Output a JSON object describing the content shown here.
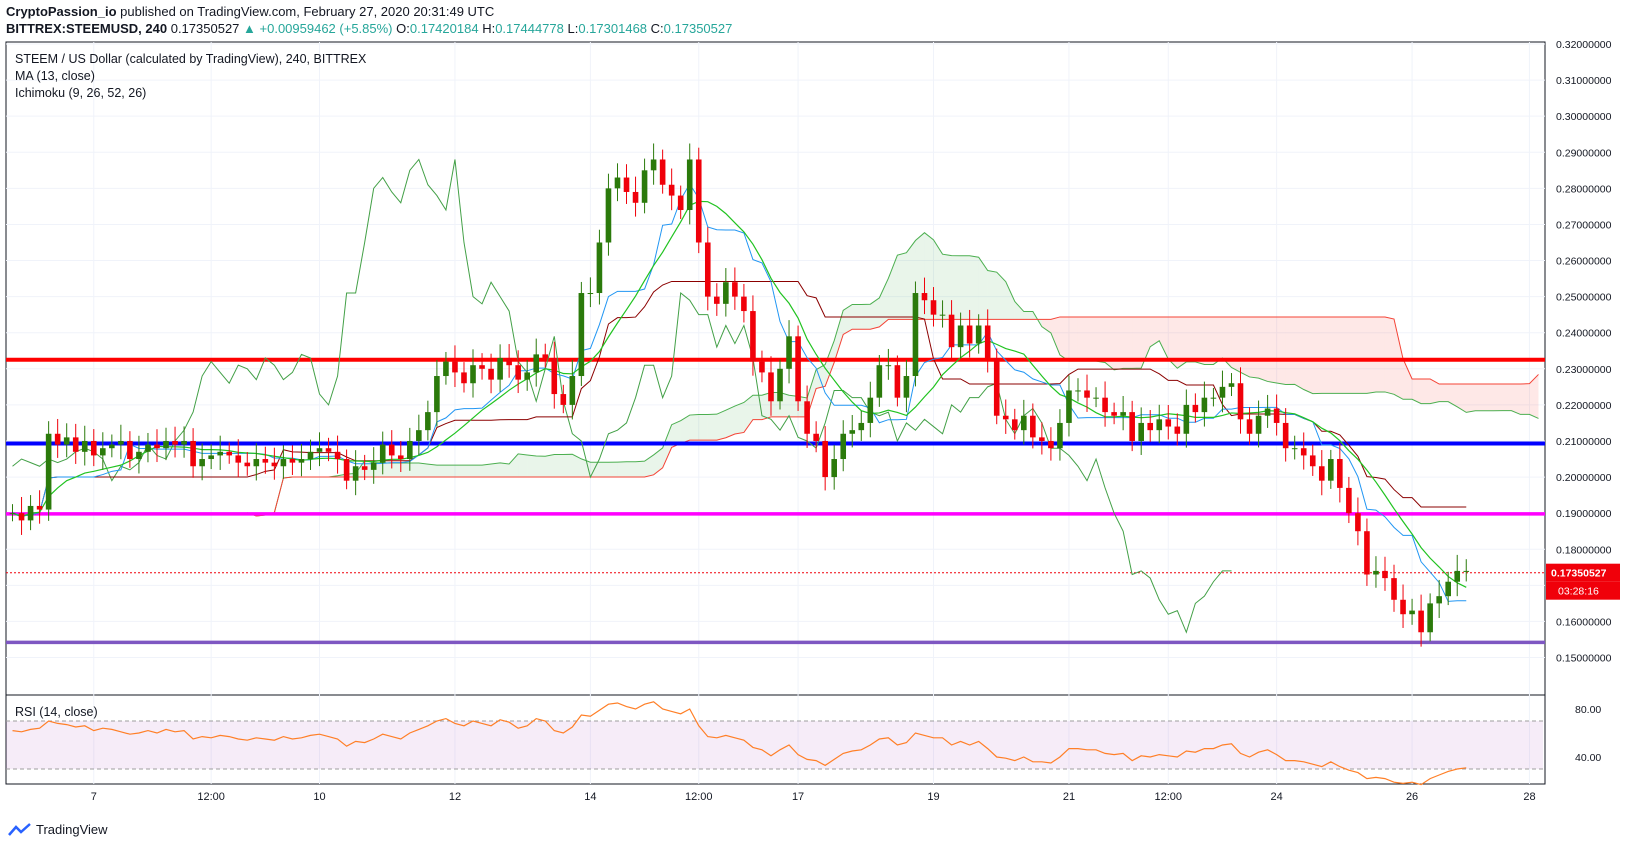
{
  "header": {
    "publisher": "CryptoPassion_io",
    "published_text": "published on TradingView.com, February 27, 2020 20:31:49 UTC",
    "symbol": "BITTREX:STEEMUSD, 240",
    "last": "0.17350527",
    "change": "▲ +0.00959462 (+5.85%)",
    "o_label": "O:",
    "o": "0.17420184",
    "h_label": "H:",
    "h": "0.17444778",
    "l_label": "L:",
    "l": "0.17301468",
    "c_label": "C:",
    "c": "0.17350527"
  },
  "legend": {
    "title": "STEEM / US Dollar (calculated by TradingView), 240, BITTREX",
    "ma": "MA (13, close)",
    "ichimoku": "Ichimoku (9, 26, 52, 26)",
    "rsi": "RSI (14, close)"
  },
  "footer": {
    "brand": "TradingView"
  },
  "colors": {
    "up": "#2b7a0b",
    "down": "#f0000a",
    "ma": "#21c321",
    "conversion": "#2196f3",
    "base": "#8b0000",
    "lagging": "#43a047",
    "red_line": "#ff0000",
    "blue_line": "#0000ff",
    "magenta_line": "#ff00ff",
    "purple_line": "#7e57c2",
    "rsi_line": "#ff7f27"
  },
  "chart_data": [
    {
      "type": "line",
      "title": "STEEM / US Dollar (calculated by TradingView), 240, BITTREX",
      "y_ticks": [
        "0.32000000",
        "0.31000000",
        "0.30000000",
        "0.29000000",
        "0.28000000",
        "0.27000000",
        "0.26000000",
        "0.25000000",
        "0.24000000",
        "0.23000000",
        "0.22000000",
        "0.21000000",
        "0.20000000",
        "0.19000000",
        "0.18000000",
        "0.17000000",
        "0.16000000",
        "0.15000000"
      ],
      "y_tick_values": [
        0.32,
        0.31,
        0.3,
        0.29,
        0.28,
        0.27,
        0.26,
        0.25,
        0.24,
        0.23,
        0.22,
        0.21,
        0.2,
        0.19,
        0.18,
        0.17,
        0.16,
        0.15
      ],
      "ylim": [
        0.141,
        0.32
      ],
      "x_labels": [
        "7",
        "12:00",
        "10",
        "12",
        "14",
        "12:00",
        "17",
        "19",
        "21",
        "12:00",
        "24",
        "26",
        "28"
      ],
      "x_label_index": [
        9,
        22,
        34,
        49,
        64,
        76,
        87,
        102,
        117,
        128,
        140,
        155,
        168
      ],
      "n_bars": 170,
      "closes": [
        0.19,
        0.188,
        0.192,
        0.191,
        0.212,
        0.209,
        0.211,
        0.207,
        0.21,
        0.206,
        0.208,
        0.209,
        0.21,
        0.205,
        0.207,
        0.209,
        0.208,
        0.21,
        0.209,
        0.21,
        0.203,
        0.205,
        0.206,
        0.207,
        0.206,
        0.204,
        0.203,
        0.205,
        0.204,
        0.203,
        0.205,
        0.204,
        0.205,
        0.207,
        0.208,
        0.207,
        0.205,
        0.199,
        0.203,
        0.202,
        0.204,
        0.209,
        0.206,
        0.205,
        0.21,
        0.213,
        0.218,
        0.228,
        0.232,
        0.229,
        0.226,
        0.231,
        0.23,
        0.227,
        0.233,
        0.231,
        0.227,
        0.229,
        0.234,
        0.233,
        0.223,
        0.22,
        0.228,
        0.251,
        0.251,
        0.265,
        0.28,
        0.283,
        0.279,
        0.276,
        0.285,
        0.288,
        0.281,
        0.278,
        0.274,
        0.288,
        0.265,
        0.25,
        0.248,
        0.254,
        0.25,
        0.246,
        0.232,
        0.229,
        0.221,
        0.23,
        0.239,
        0.221,
        0.212,
        0.21,
        0.2,
        0.205,
        0.212,
        0.213,
        0.215,
        0.222,
        0.231,
        0.231,
        0.222,
        0.228,
        0.251,
        0.249,
        0.245,
        0.245,
        0.236,
        0.242,
        0.237,
        0.242,
        0.233,
        0.217,
        0.216,
        0.213,
        0.217,
        0.211,
        0.21,
        0.208,
        0.215,
        0.224,
        0.224,
        0.222,
        0.222,
        0.218,
        0.217,
        0.218,
        0.21,
        0.215,
        0.213,
        0.216,
        0.214,
        0.212,
        0.22,
        0.218,
        0.222,
        0.222,
        0.225,
        0.226,
        0.216,
        0.212,
        0.217,
        0.219,
        0.215,
        0.208,
        0.208,
        0.206,
        0.203,
        0.199,
        0.205,
        0.197,
        0.19,
        0.185,
        0.173,
        0.174,
        0.172,
        0.166,
        0.162,
        0.163,
        0.157,
        0.165,
        0.167,
        0.171,
        0.174,
        0.174
      ],
      "levels": {
        "red": 0.2325,
        "blue": 0.2093,
        "magenta": 0.1898,
        "purple": 0.1542,
        "last": 0.17350527
      },
      "last_price_label": "0.17350527",
      "countdown": "03:28:16"
    },
    {
      "type": "line",
      "title": "RSI (14, close)",
      "y_ticks": [
        "80.00",
        "40.00"
      ],
      "y_tick_values": [
        80,
        40
      ],
      "ylim": [
        20,
        90
      ],
      "bands": [
        70,
        30
      ],
      "values": [
        62,
        61,
        63,
        64,
        70,
        68,
        67,
        65,
        66,
        62,
        64,
        63,
        61,
        59,
        60,
        62,
        60,
        63,
        61,
        62,
        55,
        57,
        56,
        58,
        57,
        55,
        54,
        56,
        55,
        54,
        57,
        55,
        56,
        58,
        59,
        57,
        55,
        49,
        53,
        52,
        55,
        59,
        57,
        55,
        60,
        63,
        66,
        70,
        72,
        68,
        66,
        70,
        68,
        66,
        71,
        69,
        64,
        66,
        72,
        70,
        62,
        60,
        65,
        75,
        74,
        79,
        84,
        85,
        82,
        80,
        84,
        86,
        80,
        78,
        76,
        80,
        66,
        57,
        56,
        58,
        56,
        54,
        48,
        46,
        41,
        46,
        50,
        42,
        38,
        37,
        33,
        38,
        43,
        45,
        46,
        50,
        55,
        56,
        50,
        52,
        60,
        58,
        56,
        56,
        50,
        53,
        50,
        53,
        47,
        40,
        39,
        37,
        40,
        36,
        36,
        35,
        40,
        47,
        47,
        46,
        46,
        43,
        42,
        43,
        37,
        41,
        40,
        42,
        41,
        40,
        45,
        44,
        47,
        47,
        50,
        51,
        43,
        40,
        44,
        46,
        42,
        37,
        37,
        36,
        34,
        32,
        36,
        32,
        29,
        27,
        22,
        23,
        22,
        19,
        18,
        19,
        17,
        22,
        25,
        28,
        30,
        31
      ]
    }
  ]
}
